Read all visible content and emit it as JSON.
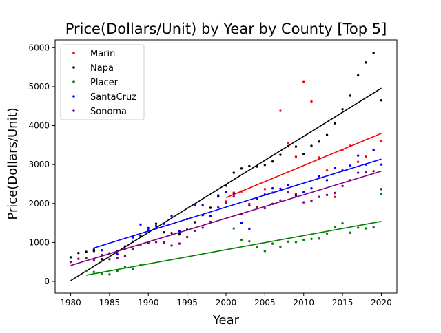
{
  "chart_data": {
    "type": "scatter",
    "title": "Price(Dollars/Unit) by Year by County [Top 5]",
    "xlabel": "Year",
    "ylabel": "Price(Dollars/Unit)",
    "xlim": [
      1978,
      2022
    ],
    "ylim": [
      -300,
      6200
    ],
    "xticks": [
      1980,
      1985,
      1990,
      1995,
      2000,
      2005,
      2010,
      2015,
      2020
    ],
    "yticks": [
      0,
      1000,
      2000,
      3000,
      4000,
      5000,
      6000
    ],
    "grid": false,
    "legend": "top-left",
    "series": [
      {
        "name": "Marin",
        "color": "#ff0000",
        "points": [
          [
            2000,
            2050
          ],
          [
            2001,
            2280
          ],
          [
            2002,
            2310
          ],
          [
            2003,
            1990
          ],
          [
            2004,
            1900
          ],
          [
            2005,
            2370
          ],
          [
            2006,
            2280
          ],
          [
            2007,
            4380
          ],
          [
            2008,
            3540
          ],
          [
            2009,
            3200
          ],
          [
            2010,
            5120
          ],
          [
            2011,
            4620
          ],
          [
            2012,
            3180
          ],
          [
            2013,
            2850
          ],
          [
            2014,
            2170
          ],
          [
            2015,
            3380
          ],
          [
            2016,
            3480
          ],
          [
            2017,
            3070
          ],
          [
            2018,
            3200
          ],
          [
            2019,
            3380
          ],
          [
            2020,
            3610
          ]
        ],
        "trend": [
          [
            2000,
            2150
          ],
          [
            2020,
            3800
          ]
        ]
      },
      {
        "name": "Napa",
        "color": "#000000",
        "points": [
          [
            1980,
            620
          ],
          [
            1981,
            730
          ],
          [
            1982,
            760
          ],
          [
            1983,
            780
          ],
          [
            1984,
            570
          ],
          [
            1985,
            720
          ],
          [
            1986,
            780
          ],
          [
            1987,
            900
          ],
          [
            1988,
            1020
          ],
          [
            1989,
            1170
          ],
          [
            1990,
            1310
          ],
          [
            1991,
            1480
          ],
          [
            1992,
            1260
          ],
          [
            1993,
            1240
          ],
          [
            1994,
            1210
          ],
          [
            1995,
            1330
          ],
          [
            1996,
            1520
          ],
          [
            1997,
            1700
          ],
          [
            1998,
            1890
          ],
          [
            1999,
            2180
          ],
          [
            2000,
            2460
          ],
          [
            2001,
            2790
          ],
          [
            2002,
            2900
          ],
          [
            2003,
            2960
          ],
          [
            2004,
            2950
          ],
          [
            2005,
            2990
          ],
          [
            2006,
            3080
          ],
          [
            2007,
            3250
          ],
          [
            2008,
            3470
          ],
          [
            2009,
            3460
          ],
          [
            2010,
            3270
          ],
          [
            2011,
            3480
          ],
          [
            2012,
            3590
          ],
          [
            2013,
            3760
          ],
          [
            2014,
            4060
          ],
          [
            2015,
            4420
          ],
          [
            2016,
            4770
          ],
          [
            2017,
            5290
          ],
          [
            2018,
            5620
          ],
          [
            2019,
            5870
          ],
          [
            2020,
            4650
          ]
        ],
        "trend": [
          [
            1980,
            20
          ],
          [
            2020,
            4960
          ]
        ]
      },
      {
        "name": "Placer",
        "color": "#008000",
        "points": [
          [
            1982,
            270
          ],
          [
            1983,
            240
          ],
          [
            1984,
            200
          ],
          [
            1985,
            180
          ],
          [
            1986,
            270
          ],
          [
            1987,
            370
          ],
          [
            1988,
            320
          ],
          [
            1989,
            420
          ],
          [
            2001,
            1360
          ],
          [
            2002,
            1070
          ],
          [
            2003,
            1030
          ],
          [
            2004,
            880
          ],
          [
            2005,
            780
          ],
          [
            2006,
            970
          ],
          [
            2007,
            890
          ],
          [
            2008,
            1020
          ],
          [
            2009,
            1010
          ],
          [
            2010,
            1070
          ],
          [
            2011,
            1090
          ],
          [
            2012,
            1100
          ],
          [
            2013,
            1230
          ],
          [
            2014,
            1390
          ],
          [
            2015,
            1490
          ],
          [
            2016,
            1250
          ],
          [
            2017,
            1380
          ],
          [
            2018,
            1360
          ],
          [
            2019,
            1390
          ],
          [
            2020,
            2240
          ]
        ],
        "trend": [
          [
            1982,
            160
          ],
          [
            2020,
            1540
          ]
        ]
      },
      {
        "name": "SantaCruz",
        "color": "#0000ff",
        "points": [
          [
            1983,
            820
          ],
          [
            1984,
            800
          ],
          [
            1986,
            700
          ],
          [
            1987,
            840
          ],
          [
            1988,
            1130
          ],
          [
            1989,
            1460
          ],
          [
            1990,
            1370
          ],
          [
            1991,
            1420
          ],
          [
            1992,
            1480
          ],
          [
            1993,
            1680
          ],
          [
            1994,
            1290
          ],
          [
            1995,
            1600
          ],
          [
            1996,
            1970
          ],
          [
            1997,
            1960
          ],
          [
            1998,
            1680
          ],
          [
            1999,
            2210
          ],
          [
            2000,
            2290
          ],
          [
            2001,
            2260
          ],
          [
            2002,
            1500
          ],
          [
            2003,
            1350
          ],
          [
            2004,
            2130
          ],
          [
            2005,
            2230
          ],
          [
            2006,
            2390
          ],
          [
            2007,
            2380
          ],
          [
            2008,
            2480
          ],
          [
            2009,
            2200
          ],
          [
            2010,
            2290
          ],
          [
            2011,
            2390
          ],
          [
            2012,
            2700
          ],
          [
            2013,
            2600
          ],
          [
            2014,
            2910
          ],
          [
            2015,
            2850
          ],
          [
            2016,
            2970
          ],
          [
            2017,
            3230
          ],
          [
            2018,
            3000
          ],
          [
            2019,
            3370
          ],
          [
            2020,
            3000
          ]
        ],
        "trend": [
          [
            1983,
            860
          ],
          [
            2020,
            3140
          ]
        ]
      },
      {
        "name": "Sonoma",
        "color": "#800080",
        "points": [
          [
            1980,
            500
          ],
          [
            1981,
            580
          ],
          [
            1982,
            600
          ],
          [
            1983,
            540
          ],
          [
            1984,
            680
          ],
          [
            1985,
            570
          ],
          [
            1986,
            600
          ],
          [
            1987,
            650
          ],
          [
            1988,
            840
          ],
          [
            1989,
            940
          ],
          [
            1990,
            990
          ],
          [
            1991,
            1010
          ],
          [
            1992,
            1000
          ],
          [
            1993,
            920
          ],
          [
            1994,
            970
          ],
          [
            1995,
            1140
          ],
          [
            1996,
            1300
          ],
          [
            1997,
            1380
          ],
          [
            1998,
            1530
          ],
          [
            1999,
            1900
          ],
          [
            2000,
            2020
          ],
          [
            2001,
            2180
          ],
          [
            2002,
            1730
          ],
          [
            2003,
            1950
          ],
          [
            2004,
            1890
          ],
          [
            2005,
            1880
          ],
          [
            2006,
            1990
          ],
          [
            2007,
            2080
          ],
          [
            2008,
            2290
          ],
          [
            2009,
            2240
          ],
          [
            2010,
            2030
          ],
          [
            2011,
            2070
          ],
          [
            2012,
            2170
          ],
          [
            2013,
            2220
          ],
          [
            2014,
            2270
          ],
          [
            2015,
            2450
          ],
          [
            2016,
            2600
          ],
          [
            2017,
            2790
          ],
          [
            2018,
            2800
          ],
          [
            2019,
            2830
          ],
          [
            2020,
            2370
          ]
        ],
        "trend": [
          [
            1980,
            410
          ],
          [
            2020,
            2830
          ]
        ]
      }
    ]
  }
}
